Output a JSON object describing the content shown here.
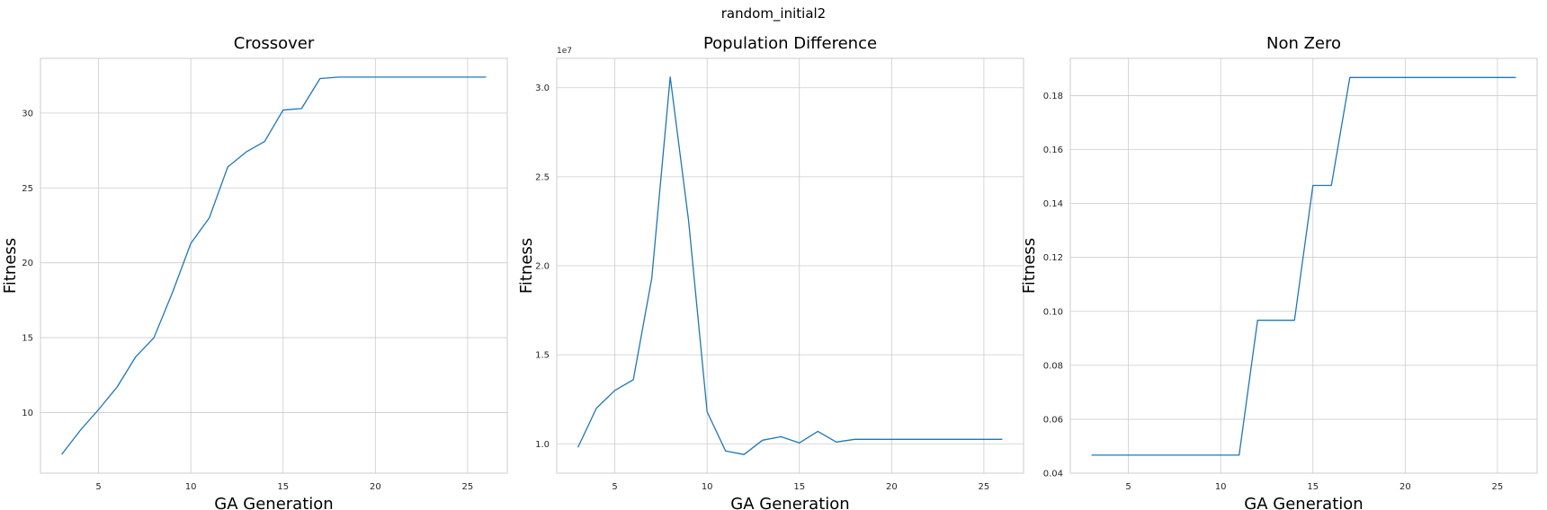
{
  "suptitle": "random_initial2",
  "chart_data": [
    {
      "type": "line",
      "title": "Crossover",
      "xlabel": "GA Generation",
      "ylabel": "Fitness",
      "x": [
        3,
        4,
        5,
        6,
        7,
        8,
        9,
        10,
        11,
        12,
        13,
        14,
        15,
        16,
        17,
        18,
        19,
        20,
        21,
        22,
        23,
        24,
        25,
        26
      ],
      "series": [
        {
          "values": [
            7.2,
            8.8,
            10.2,
            11.7,
            13.7,
            15.0,
            18.0,
            21.3,
            23.0,
            26.4,
            27.4,
            28.1,
            30.2,
            30.3,
            32.3,
            32.4,
            32.4,
            32.4,
            32.4,
            32.4,
            32.4,
            32.4,
            32.4,
            32.4
          ]
        }
      ],
      "xlim": [
        1.85,
        27.15
      ],
      "ylim": [
        5.95,
        33.65
      ],
      "xticks": [
        5,
        10,
        15,
        20,
        25
      ],
      "yticks": [
        10,
        15,
        20,
        25,
        30
      ],
      "xtick_labels": [
        "5",
        "10",
        "15",
        "20",
        "25"
      ],
      "ytick_labels": [
        "10",
        "15",
        "20",
        "25",
        "30"
      ],
      "offset_text": "",
      "grid": true,
      "color": "#1f77b4"
    },
    {
      "type": "line",
      "title": "Population Difference",
      "xlabel": "GA Generation",
      "ylabel": "Fitness",
      "x": [
        3,
        4,
        5,
        6,
        7,
        8,
        9,
        10,
        11,
        12,
        13,
        14,
        15,
        16,
        17,
        18,
        19,
        20,
        21,
        22,
        23,
        24,
        25,
        26
      ],
      "series": [
        {
          "values": [
            9.8,
            12.0,
            13.0,
            13.6,
            19.3,
            30.6,
            22.5,
            11.8,
            9.6,
            9.4,
            10.2,
            10.4,
            10.05,
            10.7,
            10.1,
            10.25,
            10.25,
            10.25,
            10.25,
            10.25,
            10.25,
            10.25,
            10.25,
            10.25
          ]
        }
      ],
      "xlim": [
        1.85,
        27.15
      ],
      "ylim": [
        8.35,
        31.65
      ],
      "xticks": [
        5,
        10,
        15,
        20,
        25
      ],
      "yticks": [
        10,
        15,
        20,
        25,
        30
      ],
      "xtick_labels": [
        "5",
        "10",
        "15",
        "20",
        "25"
      ],
      "ytick_labels": [
        "1.0",
        "1.5",
        "2.0",
        "2.5",
        "3.0"
      ],
      "offset_text": "1e7",
      "grid": true,
      "color": "#1f77b4"
    },
    {
      "type": "line",
      "title": "Non Zero",
      "xlabel": "GA Generation",
      "ylabel": "Fitness",
      "x": [
        3,
        4,
        5,
        6,
        7,
        8,
        9,
        10,
        11,
        12,
        13,
        14,
        15,
        16,
        17,
        18,
        19,
        20,
        21,
        22,
        23,
        24,
        25,
        26
      ],
      "series": [
        {
          "values": [
            0.0467,
            0.0467,
            0.0467,
            0.0467,
            0.0467,
            0.0467,
            0.0467,
            0.0467,
            0.0467,
            0.0967,
            0.0967,
            0.0967,
            0.1467,
            0.1467,
            0.1867,
            0.1867,
            0.1867,
            0.1867,
            0.1867,
            0.1867,
            0.1867,
            0.1867,
            0.1867,
            0.1867
          ]
        }
      ],
      "xlim": [
        1.85,
        27.15
      ],
      "ylim": [
        0.04,
        0.1938
      ],
      "xticks": [
        5,
        10,
        15,
        20,
        25
      ],
      "yticks": [
        0.04,
        0.06,
        0.08,
        0.1,
        0.12,
        0.14,
        0.16,
        0.18
      ],
      "xtick_labels": [
        "5",
        "10",
        "15",
        "20",
        "25"
      ],
      "ytick_labels": [
        "0.04",
        "0.06",
        "0.08",
        "0.10",
        "0.12",
        "0.14",
        "0.16",
        "0.18"
      ],
      "offset_text": "",
      "grid": true,
      "color": "#1f77b4"
    }
  ]
}
